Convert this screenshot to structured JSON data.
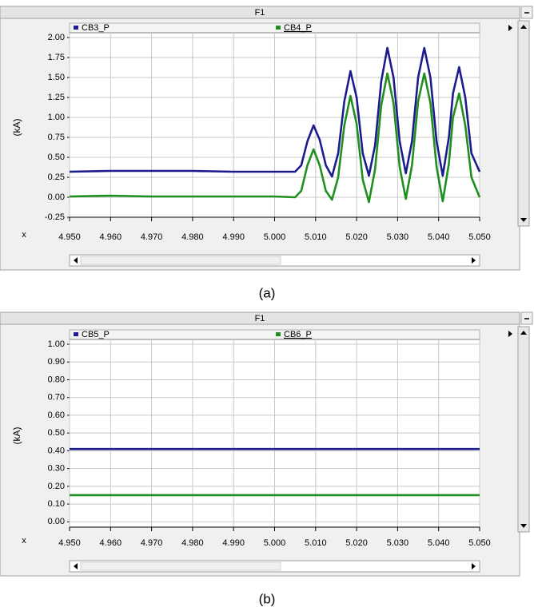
{
  "chart_data": [
    {
      "type": "line",
      "title": "F1",
      "y_label": "(kA)",
      "x_label": "x",
      "caption": "(a)",
      "x": [
        4.95,
        4.96,
        4.97,
        4.98,
        4.99,
        5.0,
        5.005,
        5.0065,
        5.008,
        5.0095,
        5.011,
        5.0125,
        5.014,
        5.0155,
        5.017,
        5.0185,
        5.02,
        5.0215,
        5.023,
        5.0245,
        5.026,
        5.0275,
        5.029,
        5.0305,
        5.032,
        5.0335,
        5.035,
        5.0365,
        5.038,
        5.0395,
        5.041,
        5.0425,
        5.0435,
        5.045,
        5.0465,
        5.048,
        5.05
      ],
      "series": [
        {
          "name": "CB3_P",
          "color": "#1c1c8e",
          "values": [
            0.32,
            0.33,
            0.33,
            0.33,
            0.32,
            0.32,
            0.32,
            0.4,
            0.7,
            0.9,
            0.72,
            0.4,
            0.26,
            0.55,
            1.2,
            1.58,
            1.25,
            0.55,
            0.27,
            0.65,
            1.45,
            1.87,
            1.5,
            0.7,
            0.3,
            0.7,
            1.5,
            1.87,
            1.5,
            0.7,
            0.27,
            0.75,
            1.3,
            1.63,
            1.25,
            0.55,
            0.32
          ]
        },
        {
          "name": "CB4_P",
          "color": "#1f8f1f",
          "values": [
            0.01,
            0.02,
            0.01,
            0.01,
            0.01,
            0.01,
            0.0,
            0.08,
            0.4,
            0.6,
            0.4,
            0.08,
            -0.03,
            0.25,
            0.9,
            1.27,
            0.92,
            0.22,
            -0.06,
            0.35,
            1.15,
            1.55,
            1.18,
            0.38,
            -0.02,
            0.4,
            1.2,
            1.55,
            1.18,
            0.38,
            -0.05,
            0.42,
            1.0,
            1.3,
            0.9,
            0.25,
            0.0
          ]
        }
      ],
      "xlim": [
        4.95,
        5.05
      ],
      "xticks": [
        {
          "value": 4.95,
          "label": "4.950"
        },
        {
          "value": 4.96,
          "label": "4.960"
        },
        {
          "value": 4.97,
          "label": "4.970"
        },
        {
          "value": 4.98,
          "label": "4.980"
        },
        {
          "value": 4.99,
          "label": "4.990"
        },
        {
          "value": 5.0,
          "label": "5.000"
        },
        {
          "value": 5.01,
          "label": "5.010"
        },
        {
          "value": 5.02,
          "label": "5.020"
        },
        {
          "value": 5.03,
          "label": "5.030"
        },
        {
          "value": 5.04,
          "label": "5.040"
        },
        {
          "value": 5.05,
          "label": "5.050"
        }
      ],
      "ylim": [
        -0.25,
        2.0
      ],
      "yticks": [
        {
          "value": 2.0,
          "label": "2.00"
        },
        {
          "value": 1.75,
          "label": "1.75"
        },
        {
          "value": 1.5,
          "label": "1.50"
        },
        {
          "value": 1.25,
          "label": "1.25"
        },
        {
          "value": 1.0,
          "label": "1.00"
        },
        {
          "value": 0.75,
          "label": "0.75"
        },
        {
          "value": 0.5,
          "label": "0.50"
        },
        {
          "value": 0.25,
          "label": "0.25"
        },
        {
          "value": 0,
          "label": "0.00"
        },
        {
          "value": -0.25,
          "label": "-0.25"
        }
      ],
      "grid": true
    },
    {
      "type": "line",
      "title": "F1",
      "y_label": "(kA)",
      "x_label": "x",
      "caption": "(b)",
      "x": [
        4.95,
        5.05
      ],
      "series": [
        {
          "name": "CB5_P",
          "color": "#1c1c8e",
          "values": [
            0.41,
            0.41
          ]
        },
        {
          "name": "CB6_P",
          "color": "#1f8f1f",
          "values": [
            0.15,
            0.15
          ]
        }
      ],
      "xlim": [
        4.95,
        5.05
      ],
      "xticks": [
        {
          "value": 4.95,
          "label": "4.950"
        },
        {
          "value": 4.96,
          "label": "4.960"
        },
        {
          "value": 4.97,
          "label": "4.970"
        },
        {
          "value": 4.98,
          "label": "4.980"
        },
        {
          "value": 4.99,
          "label": "4.990"
        },
        {
          "value": 5.0,
          "label": "5.000"
        },
        {
          "value": 5.01,
          "label": "5.010"
        },
        {
          "value": 5.02,
          "label": "5.020"
        },
        {
          "value": 5.03,
          "label": "5.030"
        },
        {
          "value": 5.04,
          "label": "5.040"
        },
        {
          "value": 5.05,
          "label": "5.050"
        }
      ],
      "ylim": [
        -0.03,
        1.0
      ],
      "yticks": [
        {
          "value": 1.0,
          "label": "1.00"
        },
        {
          "value": 0.9,
          "label": "0.90"
        },
        {
          "value": 0.8,
          "label": "0.80"
        },
        {
          "value": 0.7,
          "label": "0.70"
        },
        {
          "value": 0.6,
          "label": "0.60"
        },
        {
          "value": 0.5,
          "label": "0.50"
        },
        {
          "value": 0.4,
          "label": "0.40"
        },
        {
          "value": 0.3,
          "label": "0.30"
        },
        {
          "value": 0.2,
          "label": "0.20"
        },
        {
          "value": 0.1,
          "label": "0.10"
        },
        {
          "value": 0,
          "label": "0.00"
        }
      ],
      "grid": true
    }
  ]
}
